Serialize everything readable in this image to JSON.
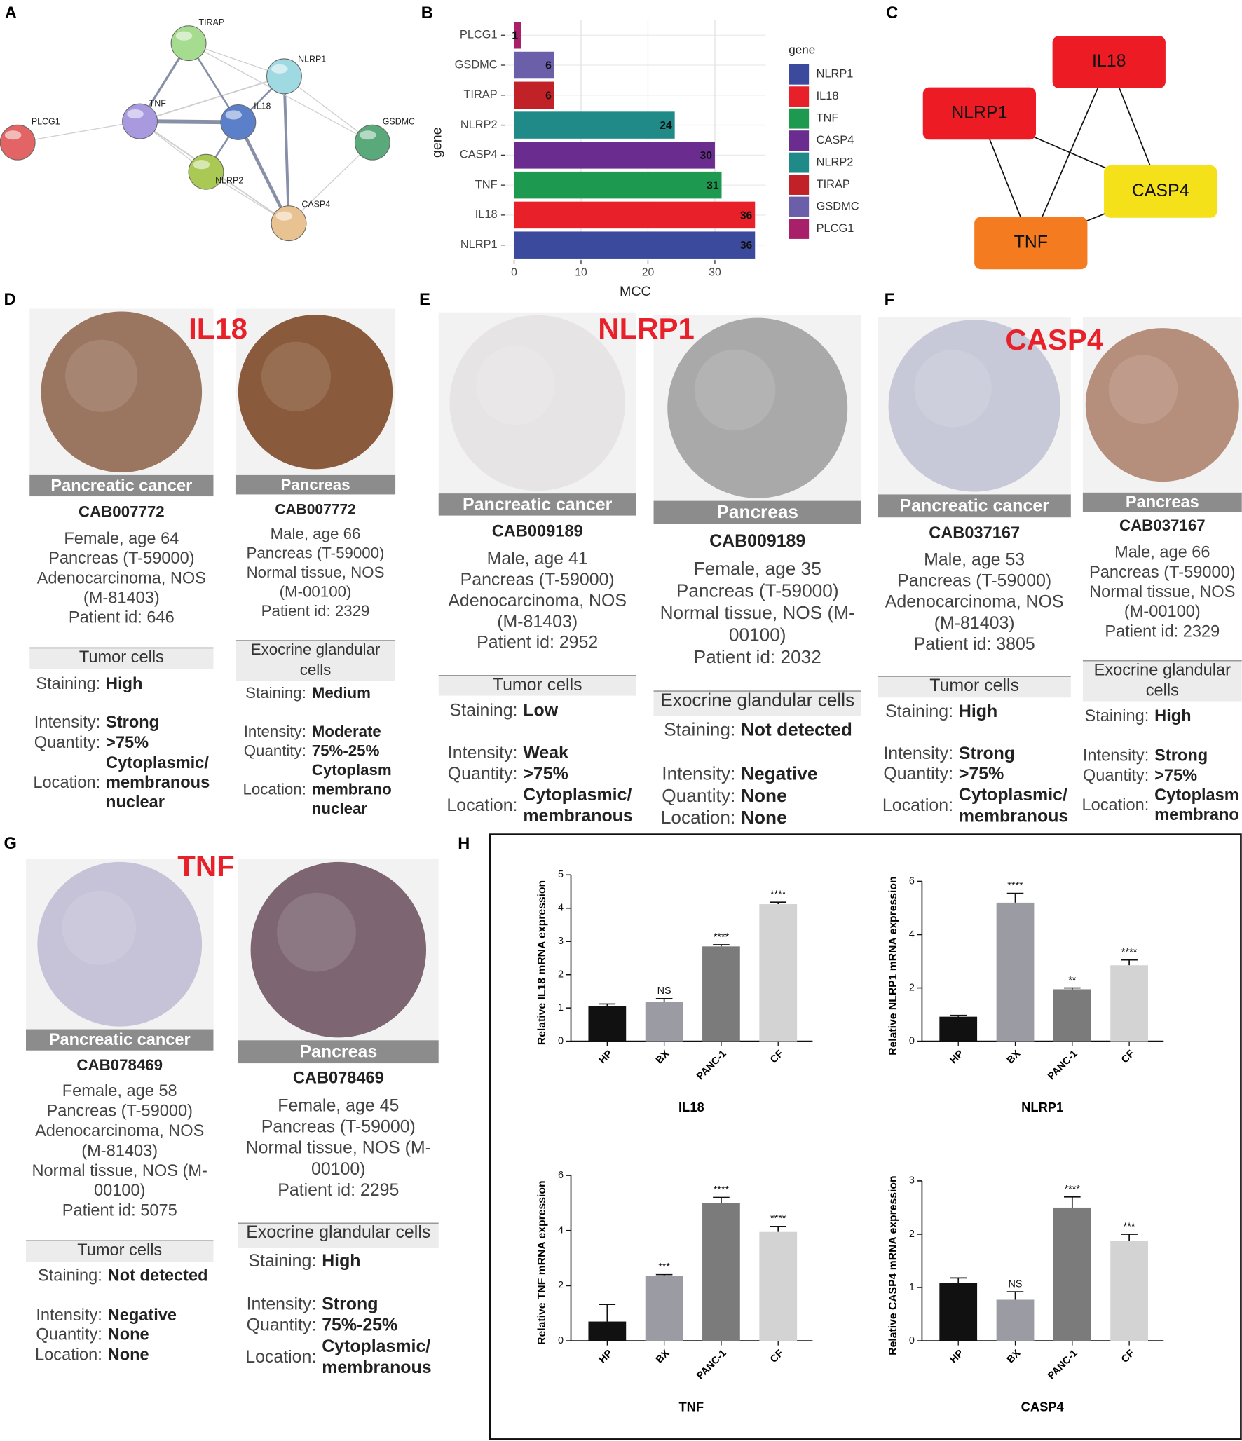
{
  "panel_labels": [
    "A",
    "B",
    "C",
    "D",
    "E",
    "F",
    "G",
    "H"
  ],
  "network_a": {
    "nodes": [
      {
        "label": "TIRAP",
        "color": "#a6dc8f"
      },
      {
        "label": "NLRP1",
        "color": "#9fd9e2"
      },
      {
        "label": "TNF",
        "color": "#a99ae0"
      },
      {
        "label": "IL18",
        "color": "#5b7fc9"
      },
      {
        "label": "PLCG1",
        "color": "#e26464"
      },
      {
        "label": "GSDMC",
        "color": "#5aa97a"
      },
      {
        "label": "NLRP2",
        "color": "#a9c954"
      },
      {
        "label": "CASP4",
        "color": "#e8c291"
      }
    ]
  },
  "chart_data": [
    {
      "type": "bar",
      "orientation": "horizontal",
      "categories": [
        "PLCG1",
        "GSDMC",
        "TIRAP",
        "NLRP2",
        "CASP4",
        "TNF",
        "IL18",
        "NLRP1"
      ],
      "values": [
        1,
        6,
        6,
        24,
        30,
        31,
        36,
        36
      ],
      "xlabel": "MCC",
      "ylabel": "gene",
      "xlim": [
        -1.4,
        37.6
      ],
      "xticks": [
        0,
        10,
        20,
        30
      ],
      "grid": true,
      "legend": {
        "title": "gene",
        "entries": [
          {
            "name": "NLRP1",
            "color": "#3b4a9c"
          },
          {
            "name": "IL18",
            "color": "#e8202a"
          },
          {
            "name": "TNF",
            "color": "#1e9a50"
          },
          {
            "name": "CASP4",
            "color": "#6a2d8f"
          },
          {
            "name": "NLRP2",
            "color": "#1f8a88"
          },
          {
            "name": "TIRAP",
            "color": "#c02227"
          },
          {
            "name": "GSDMC",
            "color": "#6a5fa8"
          },
          {
            "name": "PLCG1",
            "color": "#a8206a"
          }
        ]
      }
    },
    {
      "type": "bar",
      "title": "IL18",
      "ylabel": "Relative IL18 mRNA expression",
      "categories": [
        "HP",
        "BX",
        "PANC-1",
        "CF"
      ],
      "values": [
        1.05,
        1.18,
        2.85,
        4.12
      ],
      "errors": [
        0.07,
        0.1,
        0.05,
        0.06
      ],
      "annotations": [
        null,
        "NS",
        "****",
        "****"
      ],
      "colors": [
        "#111111",
        "#9b9ba3",
        "#7b7b7b",
        "#d3d3d3"
      ],
      "ylim": [
        0,
        5
      ],
      "yticks": [
        0,
        1,
        2,
        3,
        4,
        5
      ]
    },
    {
      "type": "bar",
      "title": "NLRP1",
      "ylabel": "Relative NLRP1 mRNA expression",
      "categories": [
        "HP",
        "BX",
        "PANC-1",
        "CF"
      ],
      "values": [
        0.92,
        5.2,
        1.95,
        2.85
      ],
      "errors": [
        0.05,
        0.35,
        0.05,
        0.2
      ],
      "annotations": [
        null,
        "****",
        "**",
        "****"
      ],
      "colors": [
        "#111111",
        "#9b9ba3",
        "#7b7b7b",
        "#d3d3d3"
      ],
      "ylim": [
        0,
        6
      ],
      "yticks": [
        0,
        2,
        4,
        6
      ]
    },
    {
      "type": "bar",
      "title": "TNF",
      "ylabel": "Relative TNF mRNA expression",
      "categories": [
        "HP",
        "BX",
        "PANC-1",
        "CF"
      ],
      "values": [
        0.7,
        2.35,
        5.0,
        3.95
      ],
      "errors": [
        0.62,
        0.05,
        0.2,
        0.2
      ],
      "annotations": [
        null,
        "***",
        "****",
        "****"
      ],
      "colors": [
        "#111111",
        "#9b9ba3",
        "#7b7b7b",
        "#d3d3d3"
      ],
      "ylim": [
        0,
        6
      ],
      "yticks": [
        0,
        2,
        4,
        6
      ]
    },
    {
      "type": "bar",
      "title": "CASP4",
      "ylabel": "Relative CASP4 mRNA expression",
      "categories": [
        "HP",
        "BX",
        "PANC-1",
        "CF"
      ],
      "values": [
        1.08,
        0.77,
        2.5,
        1.88
      ],
      "errors": [
        0.1,
        0.15,
        0.2,
        0.12
      ],
      "annotations": [
        null,
        "NS",
        "****",
        "***"
      ],
      "colors": [
        "#111111",
        "#9b9ba3",
        "#7b7b7b",
        "#d3d3d3"
      ],
      "ylim": [
        0,
        3
      ],
      "yticks": [
        0,
        1,
        2,
        3
      ]
    }
  ],
  "network_c": {
    "nodes": [
      {
        "label": "IL18",
        "color": "#ed1c24"
      },
      {
        "label": "NLRP1",
        "color": "#ed1c24"
      },
      {
        "label": "CASP4",
        "color": "#f5e11a"
      },
      {
        "label": "TNF",
        "color": "#f47b20"
      }
    ]
  },
  "tissue_panels": [
    {
      "gene": "IL18",
      "columns": [
        {
          "header": "Pancreatic cancer",
          "antibody": "CAB007772",
          "info": [
            "Female, age 64",
            "Pancreas (T-59000)",
            "Adenocarcinoma, NOS",
            "(M-81403)",
            "Patient id: 646"
          ],
          "section": [
            "Tumor cells"
          ],
          "fields": [
            {
              "key": "Staining:",
              "value": "High"
            },
            {
              "key": "Intensity:",
              "value": "Strong"
            },
            {
              "key": "Quantity:",
              "value": ">75%"
            },
            {
              "key": "Location:",
              "value": [
                "Cytoplasmic/",
                "membranous",
                "nuclear"
              ]
            }
          ]
        },
        {
          "header": "Pancreas",
          "antibody": "CAB007772",
          "info": [
            "Male, age 66",
            "Pancreas (T-59000)",
            "Normal tissue, NOS",
            "(M-00100)",
            "Patient id: 2329"
          ],
          "section": [
            "Exocrine glandular",
            "cells"
          ],
          "fields": [
            {
              "key": "Staining:",
              "value": "Medium"
            },
            {
              "key": "Intensity:",
              "value": "Moderate"
            },
            {
              "key": "Quantity:",
              "value": "75%-25%"
            },
            {
              "key": "Location:",
              "value": [
                "Cytoplasm",
                "membrano",
                "nuclear"
              ]
            }
          ]
        }
      ]
    },
    {
      "gene": "NLRP1",
      "columns": [
        {
          "header": "Pancreatic cancer",
          "antibody": "CAB009189",
          "info": [
            "Male, age 41",
            "Pancreas (T-59000)",
            "Adenocarcinoma, NOS",
            "(M-81403)",
            "Patient id: 2952"
          ],
          "section": [
            "Tumor cells"
          ],
          "fields": [
            {
              "key": "Staining:",
              "value": "Low"
            },
            {
              "key": "Intensity:",
              "value": "Weak"
            },
            {
              "key": "Quantity:",
              "value": ">75%"
            },
            {
              "key": "Location:",
              "value": [
                "Cytoplasmic/",
                "membranous"
              ]
            }
          ]
        },
        {
          "header": "Pancreas",
          "antibody": "CAB009189",
          "info": [
            "Female, age 35",
            "Pancreas (T-59000)",
            "Normal tissue, NOS (M-",
            "00100)",
            "Patient id: 2032"
          ],
          "section": [
            "Exocrine glandular cells"
          ],
          "fields": [
            {
              "key": "Staining:",
              "value": "Not detected"
            },
            {
              "key": "Intensity:",
              "value": "Negative"
            },
            {
              "key": "Quantity:",
              "value": "None"
            },
            {
              "key": "Location:",
              "value": "None"
            }
          ]
        }
      ]
    },
    {
      "gene": "CASP4",
      "columns": [
        {
          "header": "Pancreatic cancer",
          "antibody": "CAB037167",
          "info": [
            "Male, age 53",
            "Pancreas (T-59000)",
            "Adenocarcinoma, NOS",
            "(M-81403)",
            "Patient id: 3805"
          ],
          "section": [
            "Tumor cells"
          ],
          "fields": [
            {
              "key": "Staining:",
              "value": "High"
            },
            {
              "key": "Intensity:",
              "value": "Strong"
            },
            {
              "key": "Quantity:",
              "value": ">75%"
            },
            {
              "key": "Location:",
              "value": [
                "Cytoplasmic/",
                "membranous"
              ]
            }
          ]
        },
        {
          "header": "Pancreas",
          "antibody": "CAB037167",
          "info": [
            "Male, age 66",
            "Pancreas (T-59000)",
            "Normal tissue, NOS",
            "(M-00100)",
            "Patient id: 2329"
          ],
          "section": [
            "Exocrine glandular",
            "cells"
          ],
          "fields": [
            {
              "key": "Staining:",
              "value": "High"
            },
            {
              "key": "Intensity:",
              "value": "Strong"
            },
            {
              "key": "Quantity:",
              "value": ">75%"
            },
            {
              "key": "Location:",
              "value": [
                "Cytoplasm",
                "membrano"
              ]
            }
          ]
        }
      ]
    },
    {
      "gene": "TNF",
      "columns": [
        {
          "header": "Pancreatic cancer",
          "antibody": "CAB078469",
          "info": [
            "Female, age 58",
            "Pancreas (T-59000)",
            "Adenocarcinoma, NOS",
            "(M-81403)",
            "Normal tissue, NOS (M-",
            "00100)",
            "Patient id: 5075"
          ],
          "section": [
            "Tumor cells"
          ],
          "fields": [
            {
              "key": "Staining:",
              "value": "Not detected"
            },
            {
              "key": "Intensity:",
              "value": "Negative"
            },
            {
              "key": "Quantity:",
              "value": "None"
            },
            {
              "key": "Location:",
              "value": "None"
            }
          ]
        },
        {
          "header": "Pancreas",
          "antibody": "CAB078469",
          "info": [
            "Female, age 45",
            "Pancreas (T-59000)",
            "Normal tissue, NOS (M-",
            "00100)",
            "Patient id: 2295"
          ],
          "section": [
            "Exocrine glandular cells"
          ],
          "fields": [
            {
              "key": "Staining:",
              "value": "High"
            },
            {
              "key": "Intensity:",
              "value": "Strong"
            },
            {
              "key": "Quantity:",
              "value": "75%-25%"
            },
            {
              "key": "Location:",
              "value": [
                "Cytoplasmic/",
                "membranous"
              ]
            }
          ]
        }
      ]
    }
  ]
}
